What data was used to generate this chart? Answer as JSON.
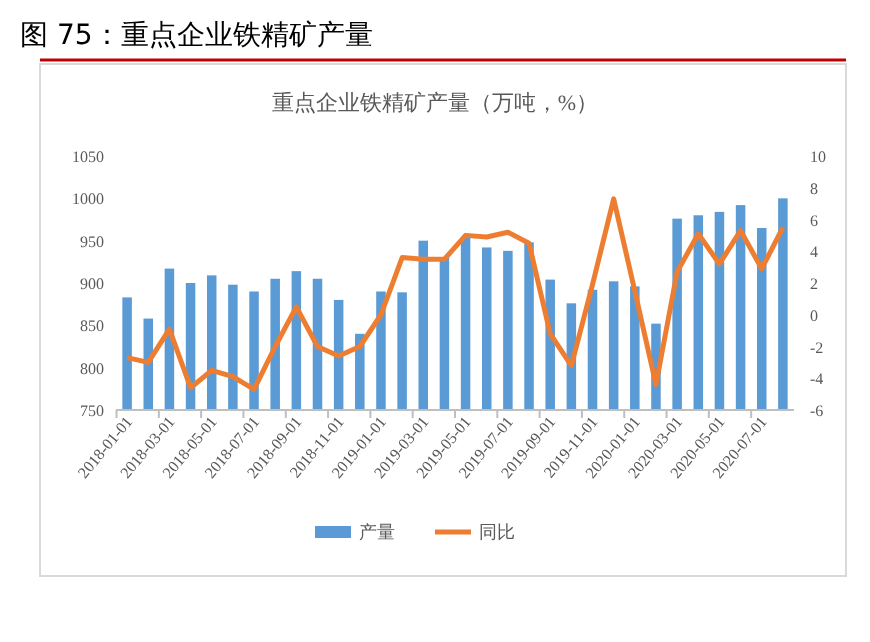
{
  "chart_data": {
    "type": "bar",
    "title": "图 75：重点企业铁精矿产量",
    "subtitle": "重点企业铁精矿产量（万吨，%）",
    "categories": [
      "2018-01-01",
      null,
      "2018-03-01",
      null,
      "2018-05-01",
      null,
      "2018-07-01",
      null,
      "2018-09-01",
      null,
      "2018-11-01",
      null,
      "2019-01-01",
      null,
      "2019-03-01",
      null,
      "2019-05-01",
      null,
      "2019-07-01",
      null,
      "2019-09-01",
      null,
      "2019-11-01",
      null,
      "2020-01-01",
      null,
      "2020-03-01",
      null,
      "2020-05-01",
      null,
      "2020-07-01",
      null
    ],
    "series": [
      {
        "name": "产量",
        "color": "#5b9bd5",
        "values": [
          883,
          858,
          917,
          900,
          909,
          898,
          890,
          905,
          914,
          905,
          880,
          840,
          890,
          889,
          950,
          930,
          954,
          942,
          938,
          948,
          904,
          876,
          892,
          902,
          896,
          852,
          976,
          980,
          984,
          992,
          965,
          1000
        ]
      },
      {
        "name": "同比",
        "type": "line",
        "axis": "y2",
        "color": "#ed7d31",
        "values": [
          -2.7,
          -3.0,
          -0.9,
          -4.6,
          -3.5,
          -3.9,
          -4.7,
          -2.0,
          0.5,
          -2.0,
          -2.6,
          -2.0,
          0,
          3.6,
          3.5,
          3.5,
          5.0,
          4.9,
          5.2,
          4.5,
          -1.2,
          -3.2,
          1.9,
          7.3,
          1.5,
          -4.4,
          2.7,
          5.1,
          3.2,
          5.3,
          2.9,
          5.5
        ]
      }
    ],
    "ylim": [
      750,
      1050
    ],
    "yticks": [
      750,
      800,
      850,
      900,
      950,
      1000,
      1050
    ],
    "y2lim": [
      -6,
      10
    ],
    "y2ticks": [
      -6,
      -4,
      -2,
      0,
      2,
      4,
      6,
      8,
      10
    ],
    "legend": "bottom",
    "grid": false
  }
}
